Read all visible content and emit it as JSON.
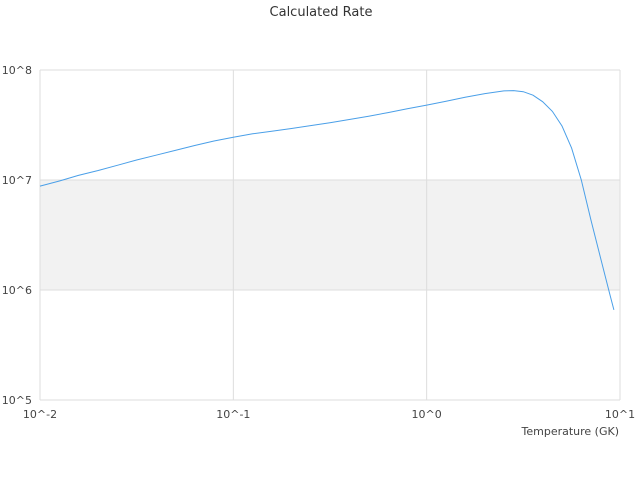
{
  "chart_data": {
    "type": "line",
    "title": "Calculated Rate",
    "xlabel": "Temperature (GK)",
    "ylabel": "",
    "x_scale": "log",
    "y_scale": "log",
    "xlim": [
      0.01,
      10
    ],
    "ylim": [
      100000,
      100000000
    ],
    "x_ticks": [
      0.01,
      0.1,
      1,
      10
    ],
    "x_tick_labels": [
      "10^-2",
      "10^-1",
      "10^0",
      "10^1"
    ],
    "y_ticks": [
      100000,
      1000000,
      10000000,
      100000000
    ],
    "y_tick_labels": [
      "10^5",
      "10^6",
      "10^7",
      "10^8"
    ],
    "grid": true,
    "alternating_bands": true,
    "legend": "none",
    "series": [
      {
        "color": "#4a9fe8",
        "x": [
          0.01,
          0.0126,
          0.0158,
          0.02,
          0.0251,
          0.0316,
          0.0398,
          0.0501,
          0.0631,
          0.0794,
          0.1,
          0.126,
          0.158,
          0.2,
          0.251,
          0.316,
          0.398,
          0.501,
          0.631,
          0.794,
          1.0,
          1.26,
          1.58,
          2.0,
          2.51,
          2.82,
          3.16,
          3.55,
          3.98,
          4.47,
          5.01,
          5.62,
          6.31,
          7.08,
          7.94,
          8.91,
          9.3
        ],
        "y": [
          8800000,
          9800000,
          11000000,
          12200000,
          13600000,
          15200000,
          16800000,
          18600000,
          20600000,
          22600000,
          24500000,
          26300000,
          27800000,
          29400000,
          31200000,
          33200000,
          35500000,
          38000000,
          41000000,
          44500000,
          48000000,
          52000000,
          56500000,
          61000000,
          64500000,
          65000000,
          63500000,
          59000000,
          51500000,
          42000000,
          31000000,
          19500000,
          10000000,
          4300000,
          1950000,
          880000,
          660000
        ]
      }
    ]
  }
}
